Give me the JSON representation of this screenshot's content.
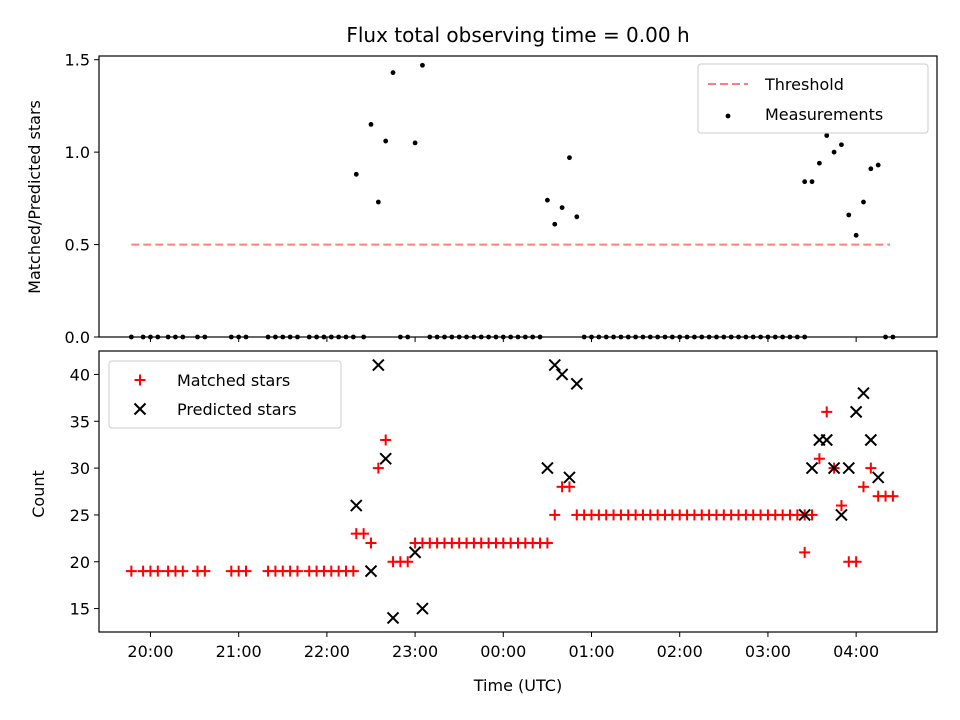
{
  "chart_data": [
    {
      "type": "scatter",
      "panel": "top",
      "title": "Flux total observing time = 0.00 h",
      "ylabel": "Matched/Predicted stars",
      "ylim": [
        0,
        1.52
      ],
      "xlim": [
        "19:25",
        "04:55"
      ],
      "yticks": [
        0.0,
        0.5,
        1.0,
        1.5
      ],
      "ytick_labels": [
        "0.0",
        "0.5",
        "1.0",
        "1.5"
      ],
      "grid": false,
      "legend_position": "upper right",
      "threshold": {
        "name": "Threshold",
        "color": "#ff7f7f",
        "style": "dashed",
        "y": 0.5,
        "x_start": "19:47",
        "x_end": "04:23"
      },
      "series": [
        {
          "name": "Measurements",
          "color": "#000000",
          "marker": "dot",
          "points": [
            [
              "19:47",
              0
            ],
            [
              "19:55",
              0
            ],
            [
              "20:00",
              0
            ],
            [
              "20:05",
              0
            ],
            [
              "20:12",
              0
            ],
            [
              "20:17",
              0
            ],
            [
              "20:22",
              0
            ],
            [
              "20:32",
              0
            ],
            [
              "20:37",
              0
            ],
            [
              "20:55",
              0
            ],
            [
              "21:00",
              0
            ],
            [
              "21:05",
              0
            ],
            [
              "21:20",
              0
            ],
            [
              "21:25",
              0
            ],
            [
              "21:30",
              0
            ],
            [
              "21:35",
              0
            ],
            [
              "21:40",
              0
            ],
            [
              "21:48",
              0
            ],
            [
              "21:53",
              0
            ],
            [
              "21:58",
              0
            ],
            [
              "22:03",
              0
            ],
            [
              "22:08",
              0
            ],
            [
              "22:13",
              0
            ],
            [
              "22:18",
              0
            ],
            [
              "22:20",
              0.88
            ],
            [
              "22:25",
              0
            ],
            [
              "22:30",
              1.15
            ],
            [
              "22:35",
              0.73
            ],
            [
              "22:40",
              1.06
            ],
            [
              "22:45",
              1.43
            ],
            [
              "22:50",
              0
            ],
            [
              "22:55",
              0
            ],
            [
              "23:00",
              1.05
            ],
            [
              "23:05",
              1.47
            ],
            [
              "23:10",
              0
            ],
            [
              "23:15",
              0
            ],
            [
              "23:20",
              0
            ],
            [
              "23:25",
              0
            ],
            [
              "23:30",
              0
            ],
            [
              "23:35",
              0
            ],
            [
              "23:40",
              0
            ],
            [
              "23:45",
              0
            ],
            [
              "23:50",
              0
            ],
            [
              "23:55",
              0
            ],
            [
              "00:00",
              0
            ],
            [
              "00:05",
              0
            ],
            [
              "00:10",
              0
            ],
            [
              "00:15",
              0
            ],
            [
              "00:20",
              0
            ],
            [
              "00:25",
              0
            ],
            [
              "00:30",
              0.74
            ],
            [
              "00:35",
              0.61
            ],
            [
              "00:40",
              0.7
            ],
            [
              "00:45",
              0.97
            ],
            [
              "00:50",
              0.65
            ],
            [
              "00:55",
              0
            ],
            [
              "01:00",
              0
            ],
            [
              "01:05",
              0
            ],
            [
              "01:10",
              0
            ],
            [
              "01:15",
              0
            ],
            [
              "01:20",
              0
            ],
            [
              "01:25",
              0
            ],
            [
              "01:30",
              0
            ],
            [
              "01:35",
              0
            ],
            [
              "01:40",
              0
            ],
            [
              "01:45",
              0
            ],
            [
              "01:50",
              0
            ],
            [
              "01:55",
              0
            ],
            [
              "02:00",
              0
            ],
            [
              "02:05",
              0
            ],
            [
              "02:10",
              0
            ],
            [
              "02:15",
              0
            ],
            [
              "02:20",
              0
            ],
            [
              "02:25",
              0
            ],
            [
              "02:30",
              0
            ],
            [
              "02:35",
              0
            ],
            [
              "02:40",
              0
            ],
            [
              "02:45",
              0
            ],
            [
              "02:50",
              0
            ],
            [
              "02:55",
              0
            ],
            [
              "03:00",
              0
            ],
            [
              "03:05",
              0
            ],
            [
              "03:10",
              0
            ],
            [
              "03:15",
              0
            ],
            [
              "03:20",
              0
            ],
            [
              "03:25",
              0
            ],
            [
              "03:25",
              0.84
            ],
            [
              "03:30",
              0.84
            ],
            [
              "03:35",
              0.94
            ],
            [
              "03:40",
              1.09
            ],
            [
              "03:45",
              1.0
            ],
            [
              "03:50",
              1.04
            ],
            [
              "03:55",
              0.66
            ],
            [
              "04:00",
              0.55
            ],
            [
              "04:05",
              0.73
            ],
            [
              "04:10",
              0.91
            ],
            [
              "04:15",
              0.93
            ],
            [
              "04:20",
              0
            ],
            [
              "04:25",
              0
            ]
          ]
        }
      ]
    },
    {
      "type": "scatter",
      "panel": "bottom",
      "xlabel": "Time (UTC)",
      "ylabel": "Count",
      "ylim": [
        12.5,
        42.5
      ],
      "xlim": [
        "19:25",
        "04:55"
      ],
      "yticks": [
        15,
        20,
        25,
        30,
        35,
        40
      ],
      "ytick_labels": [
        "15",
        "20",
        "25",
        "30",
        "35",
        "40"
      ],
      "xticks": [
        "20:00",
        "21:00",
        "22:00",
        "23:00",
        "00:00",
        "01:00",
        "02:00",
        "03:00",
        "04:00"
      ],
      "grid": false,
      "legend_position": "upper left",
      "series": [
        {
          "name": "Matched stars",
          "color": "#ff0000",
          "marker": "+",
          "points": [
            [
              "19:47",
              19
            ],
            [
              "19:55",
              19
            ],
            [
              "20:00",
              19
            ],
            [
              "20:05",
              19
            ],
            [
              "20:12",
              19
            ],
            [
              "20:17",
              19
            ],
            [
              "20:22",
              19
            ],
            [
              "20:32",
              19
            ],
            [
              "20:37",
              19
            ],
            [
              "20:55",
              19
            ],
            [
              "21:00",
              19
            ],
            [
              "21:05",
              19
            ],
            [
              "21:20",
              19
            ],
            [
              "21:25",
              19
            ],
            [
              "21:30",
              19
            ],
            [
              "21:35",
              19
            ],
            [
              "21:40",
              19
            ],
            [
              "21:48",
              19
            ],
            [
              "21:53",
              19
            ],
            [
              "21:58",
              19
            ],
            [
              "22:03",
              19
            ],
            [
              "22:08",
              19
            ],
            [
              "22:13",
              19
            ],
            [
              "22:18",
              19
            ],
            [
              "22:20",
              23
            ],
            [
              "22:25",
              23
            ],
            [
              "22:30",
              22
            ],
            [
              "22:35",
              30
            ],
            [
              "22:40",
              33
            ],
            [
              "22:45",
              20
            ],
            [
              "22:50",
              20
            ],
            [
              "22:55",
              20
            ],
            [
              "23:00",
              22
            ],
            [
              "23:05",
              22
            ],
            [
              "23:10",
              22
            ],
            [
              "23:15",
              22
            ],
            [
              "23:20",
              22
            ],
            [
              "23:25",
              22
            ],
            [
              "23:30",
              22
            ],
            [
              "23:35",
              22
            ],
            [
              "23:40",
              22
            ],
            [
              "23:45",
              22
            ],
            [
              "23:50",
              22
            ],
            [
              "23:55",
              22
            ],
            [
              "00:00",
              22
            ],
            [
              "00:05",
              22
            ],
            [
              "00:10",
              22
            ],
            [
              "00:15",
              22
            ],
            [
              "00:20",
              22
            ],
            [
              "00:25",
              22
            ],
            [
              "00:30",
              22
            ],
            [
              "00:35",
              25
            ],
            [
              "00:40",
              28
            ],
            [
              "00:45",
              28
            ],
            [
              "00:50",
              25
            ],
            [
              "00:55",
              25
            ],
            [
              "01:00",
              25
            ],
            [
              "01:05",
              25
            ],
            [
              "01:10",
              25
            ],
            [
              "01:15",
              25
            ],
            [
              "01:20",
              25
            ],
            [
              "01:25",
              25
            ],
            [
              "01:30",
              25
            ],
            [
              "01:35",
              25
            ],
            [
              "01:40",
              25
            ],
            [
              "01:45",
              25
            ],
            [
              "01:50",
              25
            ],
            [
              "01:55",
              25
            ],
            [
              "02:00",
              25
            ],
            [
              "02:05",
              25
            ],
            [
              "02:10",
              25
            ],
            [
              "02:15",
              25
            ],
            [
              "02:20",
              25
            ],
            [
              "02:25",
              25
            ],
            [
              "02:30",
              25
            ],
            [
              "02:35",
              25
            ],
            [
              "02:40",
              25
            ],
            [
              "02:45",
              25
            ],
            [
              "02:50",
              25
            ],
            [
              "02:55",
              25
            ],
            [
              "03:00",
              25
            ],
            [
              "03:05",
              25
            ],
            [
              "03:10",
              25
            ],
            [
              "03:15",
              25
            ],
            [
              "03:20",
              25
            ],
            [
              "03:25",
              25
            ],
            [
              "03:25",
              21
            ],
            [
              "03:30",
              25
            ],
            [
              "03:35",
              31
            ],
            [
              "03:40",
              36
            ],
            [
              "03:45",
              30
            ],
            [
              "03:50",
              26
            ],
            [
              "03:55",
              20
            ],
            [
              "04:00",
              20
            ],
            [
              "04:05",
              28
            ],
            [
              "04:10",
              30
            ],
            [
              "04:15",
              27
            ],
            [
              "04:20",
              27
            ],
            [
              "04:25",
              27
            ]
          ]
        },
        {
          "name": "Predicted stars",
          "color": "#000000",
          "marker": "x",
          "points": [
            [
              "22:20",
              26
            ],
            [
              "22:30",
              19
            ],
            [
              "22:35",
              41
            ],
            [
              "22:40",
              31
            ],
            [
              "22:45",
              14
            ],
            [
              "23:00",
              21
            ],
            [
              "23:05",
              15
            ],
            [
              "00:30",
              30
            ],
            [
              "00:35",
              41
            ],
            [
              "00:40",
              40
            ],
            [
              "00:45",
              29
            ],
            [
              "00:50",
              39
            ],
            [
              "03:25",
              25
            ],
            [
              "03:30",
              30
            ],
            [
              "03:35",
              33
            ],
            [
              "03:40",
              33
            ],
            [
              "03:45",
              30
            ],
            [
              "03:50",
              25
            ],
            [
              "03:55",
              30
            ],
            [
              "04:00",
              36
            ],
            [
              "04:05",
              38
            ],
            [
              "04:10",
              33
            ],
            [
              "04:15",
              29
            ]
          ]
        }
      ]
    }
  ]
}
